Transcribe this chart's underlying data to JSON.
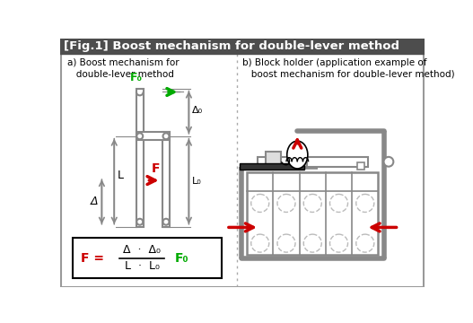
{
  "title": "[Fig.1] Boost mechanism for double-lever method",
  "title_bg": "#4d4d4d",
  "title_color": "#ffffff",
  "bg_color": "#ffffff",
  "border_color": "#999999",
  "label_a": "a) Boost mechanism for\n   double-lever method",
  "label_b": "b) Block holder (application example of\n   boost mechanism for double-lever method)",
  "green": "#00aa00",
  "red": "#cc0000",
  "gray": "#888888",
  "dark_gray": "#333333",
  "light_gray": "#bbbbbb"
}
